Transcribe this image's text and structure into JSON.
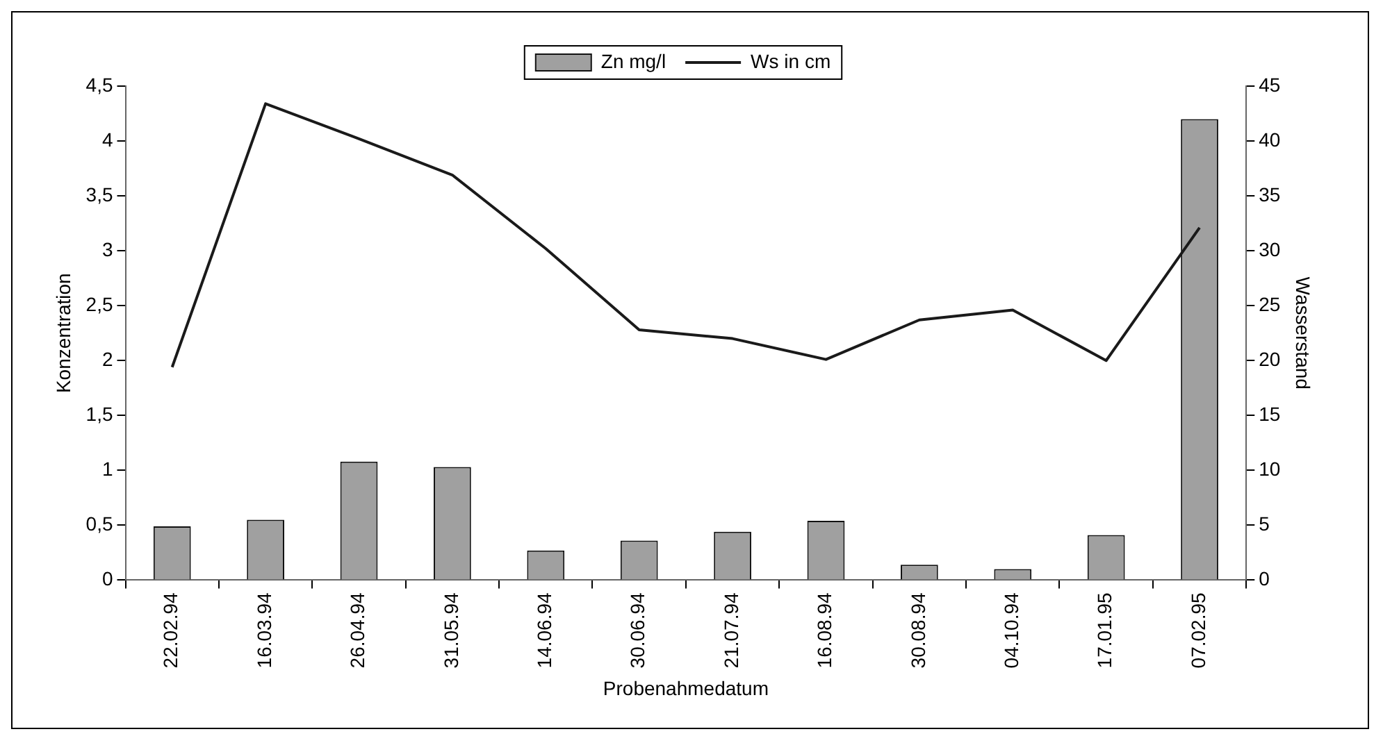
{
  "chart_data": {
    "type": "bar",
    "xlabel": "Probenahmedatum",
    "ylabel": "Konzentration",
    "y2label": "Wasserstand",
    "categories": [
      "22.02.94",
      "16.03.94",
      "26.04.94",
      "31.05.94",
      "14.06.94",
      "30.06.94",
      "21.07.94",
      "16.08.94",
      "30.08.94",
      "04.10.94",
      "17.01.95",
      "07.02.95"
    ],
    "series": [
      {
        "name": "Zn mg/l",
        "color": "#a0a0a0",
        "values": [
          0.49,
          0.55,
          1.08,
          1.03,
          0.27,
          0.36,
          0.44,
          0.54,
          0.14,
          0.1,
          0.41,
          4.2
        ]
      },
      {
        "name": "Ws in cm",
        "type": "line",
        "axis": "y2",
        "color": "#1a1a1a",
        "values": [
          19.4,
          43.4,
          40.2,
          36.9,
          30.2,
          22.8,
          22.0,
          20.1,
          23.7,
          24.6,
          20.0,
          32.1
        ]
      }
    ],
    "ylim": [
      0,
      4.5
    ],
    "yticks": [
      0,
      {
        "value": 0.5,
        "label": "0,5"
      },
      1,
      {
        "value": 1.5,
        "label": "1,5"
      },
      2,
      {
        "value": 2.5,
        "label": "2,5"
      },
      3,
      {
        "value": 3.5,
        "label": "3,5"
      },
      4,
      {
        "value": 4.5,
        "label": "4,5"
      }
    ],
    "y2lim": [
      0,
      45
    ],
    "y2ticks": [
      0,
      5,
      10,
      15,
      20,
      25,
      30,
      35,
      40,
      45
    ],
    "legend": "top",
    "marker": "none",
    "line_style": "solid"
  }
}
